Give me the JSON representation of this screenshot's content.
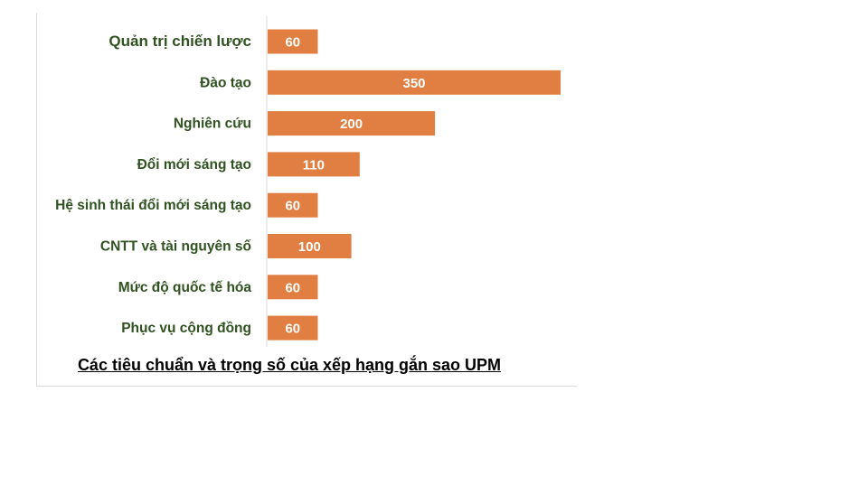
{
  "chart_data": {
    "type": "bar",
    "orientation": "horizontal",
    "title": "Các tiêu chuẩn và trọng số của xếp hạng gắn sao UPM",
    "categories": [
      "Quản trị chiến lược",
      "Đào tạo",
      "Nghiên cứu",
      "Đổi mới sáng tạo",
      "Hệ sinh thái đổi mới sáng tạo",
      "CNTT và tài nguyên số",
      "Mức độ quốc tế hóa",
      "Phục vụ cộng đồng"
    ],
    "values": [
      60,
      350,
      200,
      110,
      60,
      100,
      60,
      60
    ],
    "data_labels": [
      "60",
      "350",
      "200",
      "110",
      "60",
      "100",
      "60",
      "60"
    ],
    "xlim": [
      0,
      350
    ],
    "grid": false,
    "legend": "none",
    "colors": {
      "bar": "#e07f41",
      "category_label": "#2f5220",
      "value_label": "#ffffff",
      "axis": "#d9d9d9"
    }
  }
}
